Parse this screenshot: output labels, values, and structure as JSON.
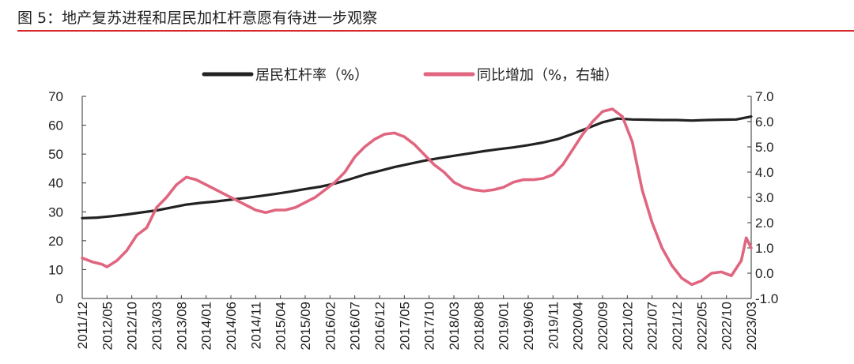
{
  "figure": {
    "title": "图 5：地产复苏进程和居民加杠杆意愿有待进一步观察"
  },
  "chart_data": {
    "type": "line",
    "title": "图 5：地产复苏进程和居民加杠杆意愿有待进一步观察",
    "xlabel": "",
    "ylabel": "",
    "legend_position": "top",
    "grid": false,
    "x_ticks": [
      "2011/12",
      "2012/05",
      "2012/10",
      "2013/03",
      "2013/08",
      "2014/01",
      "2014/06",
      "2014/11",
      "2015/04",
      "2015/09",
      "2016/02",
      "2016/07",
      "2016/12",
      "2017/05",
      "2017/10",
      "2018/03",
      "2018/08",
      "2019/01",
      "2019/06",
      "2019/11",
      "2020/04",
      "2020/09",
      "2021/02",
      "2021/07",
      "2021/12",
      "2022/05",
      "2022/10",
      "2023/03"
    ],
    "x_range": [
      "2011/12",
      "2023/03"
    ],
    "y_left": {
      "ylim": [
        0,
        70
      ],
      "ticks": [
        "0",
        "10",
        "20",
        "30",
        "40",
        "50",
        "60",
        "70"
      ]
    },
    "y_right": {
      "ylim": [
        -1,
        7
      ],
      "ticks": [
        "-1.0",
        "0.0",
        "1.0",
        "2.0",
        "3.0",
        "4.0",
        "5.0",
        "6.0",
        "7.0"
      ]
    },
    "series": [
      {
        "name": "居民杠杆率（%）",
        "axis": "left",
        "color": "#222222",
        "points": [
          [
            "2011/12",
            27.8
          ],
          [
            "2012/03",
            28.0
          ],
          [
            "2012/06",
            28.5
          ],
          [
            "2012/09",
            29.1
          ],
          [
            "2012/12",
            29.8
          ],
          [
            "2013/03",
            30.5
          ],
          [
            "2013/06",
            31.5
          ],
          [
            "2013/09",
            32.5
          ],
          [
            "2013/12",
            33.1
          ],
          [
            "2014/03",
            33.6
          ],
          [
            "2014/06",
            34.2
          ],
          [
            "2014/09",
            34.8
          ],
          [
            "2014/12",
            35.5
          ],
          [
            "2015/03",
            36.2
          ],
          [
            "2015/06",
            37.0
          ],
          [
            "2015/09",
            37.9
          ],
          [
            "2015/12",
            38.7
          ],
          [
            "2016/03",
            39.8
          ],
          [
            "2016/06",
            41.3
          ],
          [
            "2016/09",
            42.9
          ],
          [
            "2016/12",
            44.2
          ],
          [
            "2017/03",
            45.5
          ],
          [
            "2017/06",
            46.6
          ],
          [
            "2017/09",
            47.7
          ],
          [
            "2017/12",
            48.6
          ],
          [
            "2018/03",
            49.4
          ],
          [
            "2018/06",
            50.2
          ],
          [
            "2018/09",
            51.0
          ],
          [
            "2018/12",
            51.7
          ],
          [
            "2019/03",
            52.3
          ],
          [
            "2019/06",
            53.1
          ],
          [
            "2019/09",
            54.0
          ],
          [
            "2019/12",
            55.2
          ],
          [
            "2020/03",
            57.0
          ],
          [
            "2020/06",
            59.0
          ],
          [
            "2020/09",
            61.0
          ],
          [
            "2020/12",
            62.3
          ],
          [
            "2021/03",
            62.0
          ],
          [
            "2021/06",
            61.9
          ],
          [
            "2021/09",
            61.8
          ],
          [
            "2021/12",
            61.8
          ],
          [
            "2022/03",
            61.6
          ],
          [
            "2022/06",
            61.8
          ],
          [
            "2022/09",
            61.9
          ],
          [
            "2022/12",
            62.0
          ],
          [
            "2023/03",
            63.0
          ]
        ]
      },
      {
        "name": "同比增加（%，右轴）",
        "axis": "right",
        "color": "#e06680",
        "points": [
          [
            "2011/12",
            0.6
          ],
          [
            "2012/02",
            0.45
          ],
          [
            "2012/04",
            0.35
          ],
          [
            "2012/05",
            0.25
          ],
          [
            "2012/07",
            0.5
          ],
          [
            "2012/09",
            0.9
          ],
          [
            "2012/11",
            1.5
          ],
          [
            "2013/01",
            1.8
          ],
          [
            "2013/03",
            2.6
          ],
          [
            "2013/05",
            3.0
          ],
          [
            "2013/07",
            3.5
          ],
          [
            "2013/09",
            3.8
          ],
          [
            "2013/11",
            3.7
          ],
          [
            "2014/01",
            3.5
          ],
          [
            "2014/03",
            3.3
          ],
          [
            "2014/05",
            3.1
          ],
          [
            "2014/07",
            2.9
          ],
          [
            "2014/09",
            2.7
          ],
          [
            "2014/11",
            2.5
          ],
          [
            "2015/01",
            2.4
          ],
          [
            "2015/03",
            2.5
          ],
          [
            "2015/05",
            2.5
          ],
          [
            "2015/07",
            2.6
          ],
          [
            "2015/09",
            2.8
          ],
          [
            "2015/11",
            3.0
          ],
          [
            "2016/01",
            3.3
          ],
          [
            "2016/03",
            3.6
          ],
          [
            "2016/05",
            4.0
          ],
          [
            "2016/07",
            4.6
          ],
          [
            "2016/09",
            5.0
          ],
          [
            "2016/11",
            5.3
          ],
          [
            "2017/01",
            5.5
          ],
          [
            "2017/03",
            5.55
          ],
          [
            "2017/05",
            5.4
          ],
          [
            "2017/07",
            5.1
          ],
          [
            "2017/09",
            4.7
          ],
          [
            "2017/11",
            4.3
          ],
          [
            "2018/01",
            4.0
          ],
          [
            "2018/03",
            3.6
          ],
          [
            "2018/05",
            3.4
          ],
          [
            "2018/07",
            3.3
          ],
          [
            "2018/09",
            3.25
          ],
          [
            "2018/11",
            3.3
          ],
          [
            "2019/01",
            3.4
          ],
          [
            "2019/03",
            3.6
          ],
          [
            "2019/05",
            3.7
          ],
          [
            "2019/07",
            3.7
          ],
          [
            "2019/09",
            3.75
          ],
          [
            "2019/11",
            3.9
          ],
          [
            "2020/01",
            4.3
          ],
          [
            "2020/03",
            4.9
          ],
          [
            "2020/05",
            5.5
          ],
          [
            "2020/07",
            6.0
          ],
          [
            "2020/09",
            6.4
          ],
          [
            "2020/11",
            6.5
          ],
          [
            "2021/01",
            6.2
          ],
          [
            "2021/03",
            5.2
          ],
          [
            "2021/05",
            3.3
          ],
          [
            "2021/07",
            2.0
          ],
          [
            "2021/09",
            1.0
          ],
          [
            "2021/11",
            0.3
          ],
          [
            "2022/01",
            -0.2
          ],
          [
            "2022/03",
            -0.45
          ],
          [
            "2022/05",
            -0.3
          ],
          [
            "2022/07",
            0.0
          ],
          [
            "2022/09",
            0.05
          ],
          [
            "2022/11",
            -0.1
          ],
          [
            "2023/01",
            0.5
          ],
          [
            "2023/02",
            1.4
          ],
          [
            "2023/03",
            1.0
          ]
        ]
      }
    ]
  }
}
